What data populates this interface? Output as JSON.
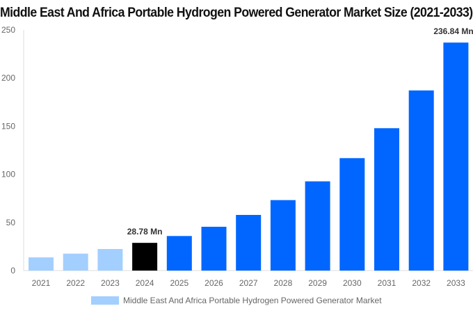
{
  "chart_data": {
    "type": "bar",
    "title": "Middle East And Africa Portable Hydrogen Powered Generator Market Size (2021-2033)",
    "categories": [
      "2021",
      "2022",
      "2023",
      "2024",
      "2025",
      "2026",
      "2027",
      "2028",
      "2029",
      "2030",
      "2031",
      "2032",
      "2033"
    ],
    "series": [
      {
        "name": "Middle East And Africa Portable Hydrogen Powered Generator Market",
        "values": [
          13.7,
          17.6,
          22.4,
          28.78,
          35.9,
          45.5,
          57.8,
          73.2,
          92.7,
          116.8,
          147.9,
          187.1,
          236.84
        ]
      }
    ],
    "data_labels": {
      "2024": "28.78 Mn",
      "2033": "236.84 Mn"
    },
    "ylim": [
      0,
      250
    ],
    "yticks": [
      0,
      50,
      100,
      150,
      200,
      250
    ],
    "grid": false,
    "legend": "bottom",
    "colors": {
      "historical": "#a3cfff",
      "base_year": "#000000",
      "forecast": "#0066ff"
    }
  }
}
